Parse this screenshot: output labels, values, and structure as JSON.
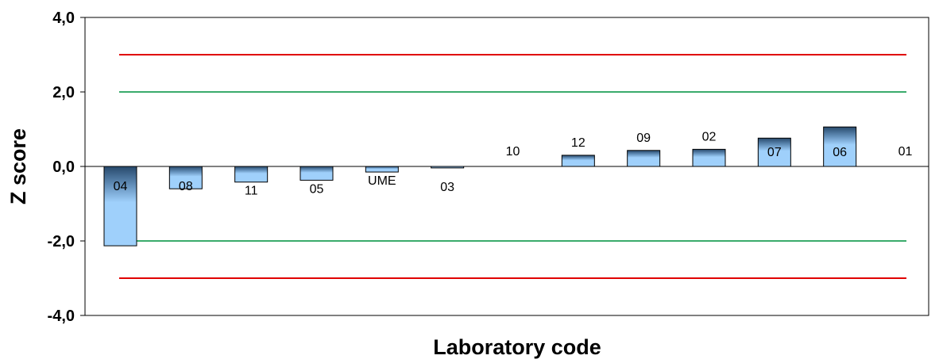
{
  "chart_data": {
    "type": "bar",
    "xlabel": "Laboratory code",
    "ylabel": "Z score",
    "ylim": [
      -4,
      4
    ],
    "yticks": [
      4,
      2,
      0,
      -2,
      -4
    ],
    "ytick_labels": [
      "4,0",
      "2,0",
      "0,0",
      "-2,0",
      "-4,0"
    ],
    "categories": [
      "04",
      "08",
      "11",
      "05",
      "UME",
      "03",
      "10",
      "12",
      "09",
      "02",
      "07",
      "06",
      "01"
    ],
    "values": [
      -2.13,
      -0.6,
      -0.42,
      -0.37,
      -0.15,
      -0.04,
      0.0,
      0.3,
      0.43,
      0.46,
      0.76,
      1.06,
      0.0
    ],
    "reference_lines": [
      {
        "value": 3,
        "color": "#e00000"
      },
      {
        "value": 2,
        "color": "#3aab6c"
      },
      {
        "value": -2,
        "color": "#3aab6c"
      },
      {
        "value": -3,
        "color": "#e00000"
      }
    ],
    "bar_colors": {
      "light": "#9fd0fb",
      "dark": "#27496b"
    },
    "grid": false,
    "legend": "none"
  }
}
